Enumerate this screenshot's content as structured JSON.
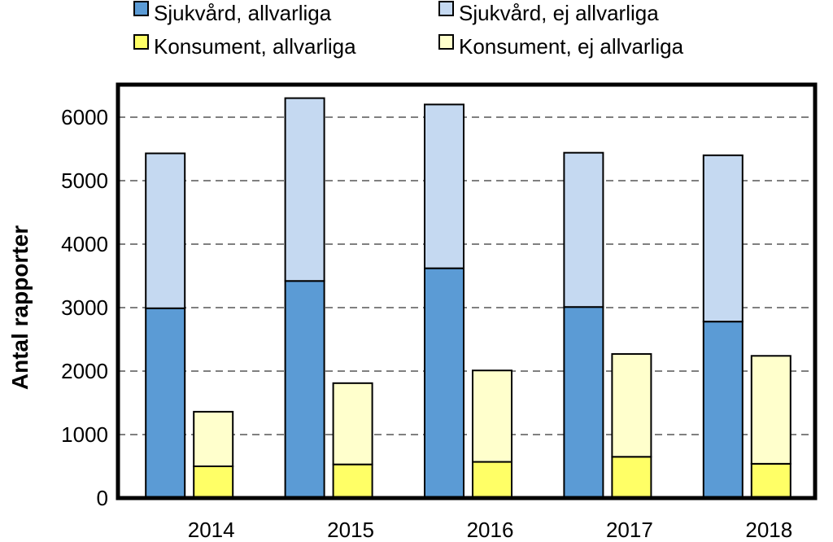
{
  "chart_data": {
    "type": "bar",
    "stacked": true,
    "categories": [
      "2014",
      "2015",
      "2016",
      "2017",
      "2018"
    ],
    "groups": [
      {
        "key": "sjukvard",
        "series": [
          {
            "name": "Sjukvård, allvarliga",
            "color": "#5b9bd5",
            "values": [
              2990,
              3420,
              3620,
              3010,
              2780
            ]
          },
          {
            "name": "Sjukvård, ej allvarliga",
            "color": "#c5d9f1",
            "values": [
              2440,
              2880,
              2580,
              2430,
              2620
            ]
          }
        ]
      },
      {
        "key": "konsument",
        "series": [
          {
            "name": "Konsument, allvarliga",
            "color": "#ffff66",
            "values": [
              500,
              530,
              570,
              650,
              540
            ]
          },
          {
            "name": "Konsument, ej allvarliga",
            "color": "#ffffcc",
            "values": [
              860,
              1280,
              1440,
              1620,
              1700
            ]
          }
        ]
      }
    ],
    "ylabel": "Antal rapporter",
    "xlabel": "",
    "ylim": [
      0,
      6000
    ],
    "yticks": [
      "0",
      "1000",
      "2000",
      "3000",
      "4000",
      "5000",
      "6000"
    ],
    "ytick_values": [
      0,
      1000,
      2000,
      3000,
      4000,
      5000,
      6000
    ],
    "grid": "horizontal-dashed",
    "legend_placement": "top"
  }
}
